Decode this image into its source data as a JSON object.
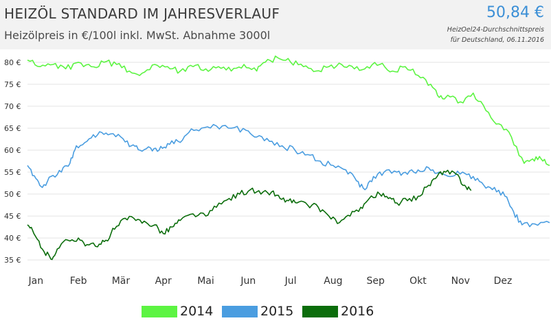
{
  "header": {
    "title": "HEIZÖL STANDARD IM JAHRESVERLAUF",
    "subtitle": "Heizölpreis in €/100l inkl. MwSt. Abnahme 3000l",
    "price": "50,84 €",
    "note_line1": "HeizOel24-Durchschnittspreis",
    "note_line2": "für Deutschland, 06.11.2016"
  },
  "chart_data": {
    "type": "line",
    "ylim": [
      33,
      82
    ],
    "yticks": [
      {
        "value": 80,
        "label": "80 €"
      },
      {
        "value": 75,
        "label": "75 €"
      },
      {
        "value": 70,
        "label": "70 €"
      },
      {
        "value": 65,
        "label": "65 €"
      },
      {
        "value": 60,
        "label": "60 €"
      },
      {
        "value": 55,
        "label": "55 €"
      },
      {
        "value": 50,
        "label": "50 €"
      },
      {
        "value": 45,
        "label": "45 €"
      },
      {
        "value": 40,
        "label": "40 €"
      },
      {
        "value": 35,
        "label": "35 €"
      }
    ],
    "xlim": [
      0,
      12.3
    ],
    "xticks": [
      {
        "value": 0.2,
        "label": "Jan"
      },
      {
        "value": 1.2,
        "label": "Feb"
      },
      {
        "value": 2.2,
        "label": "Mär"
      },
      {
        "value": 3.2,
        "label": "Apr"
      },
      {
        "value": 4.2,
        "label": "Mai"
      },
      {
        "value": 5.2,
        "label": "Jun"
      },
      {
        "value": 6.2,
        "label": "Jul"
      },
      {
        "value": 7.2,
        "label": "Aug"
      },
      {
        "value": 8.2,
        "label": "Sep"
      },
      {
        "value": 9.2,
        "label": "Okt"
      },
      {
        "value": 10.2,
        "label": "Nov"
      },
      {
        "value": 11.2,
        "label": "Dez"
      }
    ],
    "series": [
      {
        "name": "2014",
        "color": "#5cf442",
        "points": [
          [
            0,
            80.5
          ],
          [
            0.3,
            79
          ],
          [
            0.6,
            79.5
          ],
          [
            0.9,
            78.5
          ],
          [
            1.2,
            80
          ],
          [
            1.5,
            79
          ],
          [
            1.8,
            80
          ],
          [
            2.1,
            79.5
          ],
          [
            2.4,
            78
          ],
          [
            2.7,
            77.5
          ],
          [
            3.0,
            79.5
          ],
          [
            3.3,
            79
          ],
          [
            3.6,
            78
          ],
          [
            3.9,
            79
          ],
          [
            4.2,
            78.5
          ],
          [
            4.5,
            79
          ],
          [
            4.8,
            78
          ],
          [
            5.1,
            79.5
          ],
          [
            5.4,
            78
          ],
          [
            5.6,
            80
          ],
          [
            5.9,
            81
          ],
          [
            6.2,
            80
          ],
          [
            6.5,
            79
          ],
          [
            6.8,
            78
          ],
          [
            7.1,
            79
          ],
          [
            7.4,
            79.5
          ],
          [
            7.7,
            78.5
          ],
          [
            8.0,
            79
          ],
          [
            8.3,
            79.5
          ],
          [
            8.6,
            78
          ],
          [
            8.9,
            79
          ],
          [
            9.2,
            77
          ],
          [
            9.5,
            75
          ],
          [
            9.7,
            72
          ],
          [
            9.9,
            72.5
          ],
          [
            10.2,
            71
          ],
          [
            10.5,
            73
          ],
          [
            10.8,
            69
          ],
          [
            11.1,
            66
          ],
          [
            11.4,
            63
          ],
          [
            11.7,
            57
          ],
          [
            11.9,
            58
          ],
          [
            12.1,
            58
          ],
          [
            12.3,
            56.5
          ]
        ]
      },
      {
        "name": "2015",
        "color": "#4a9de0",
        "points": [
          [
            0,
            56.5
          ],
          [
            0.2,
            53.5
          ],
          [
            0.35,
            51.5
          ],
          [
            0.55,
            54
          ],
          [
            0.8,
            55
          ],
          [
            1.0,
            57
          ],
          [
            1.15,
            61
          ],
          [
            1.4,
            62
          ],
          [
            1.65,
            63.5
          ],
          [
            1.9,
            63.5
          ],
          [
            2.2,
            63
          ],
          [
            2.45,
            61
          ],
          [
            2.65,
            60
          ],
          [
            2.9,
            60.5
          ],
          [
            3.1,
            60
          ],
          [
            3.3,
            61.5
          ],
          [
            3.55,
            62
          ],
          [
            3.8,
            64
          ],
          [
            4.1,
            65
          ],
          [
            4.45,
            65.5
          ],
          [
            4.8,
            65
          ],
          [
            5.15,
            64.5
          ],
          [
            5.4,
            63
          ],
          [
            5.7,
            62
          ],
          [
            6.0,
            61
          ],
          [
            6.3,
            60
          ],
          [
            6.6,
            59
          ],
          [
            6.9,
            57.5
          ],
          [
            7.2,
            56.5
          ],
          [
            7.5,
            55.5
          ],
          [
            7.75,
            53
          ],
          [
            7.95,
            51
          ],
          [
            8.15,
            54
          ],
          [
            8.4,
            55
          ],
          [
            8.7,
            55
          ],
          [
            8.95,
            54.5
          ],
          [
            9.2,
            55.5
          ],
          [
            9.45,
            56
          ],
          [
            9.7,
            55
          ],
          [
            9.95,
            54
          ],
          [
            10.25,
            55
          ],
          [
            10.5,
            54
          ],
          [
            10.75,
            52
          ],
          [
            11.0,
            51.5
          ],
          [
            11.25,
            49.5
          ],
          [
            11.45,
            46
          ],
          [
            11.65,
            43
          ],
          [
            11.95,
            43.2
          ],
          [
            12.3,
            43.5
          ]
        ]
      },
      {
        "name": "2016",
        "color": "#0b6d0b",
        "points": [
          [
            0,
            43
          ],
          [
            0.15,
            41
          ],
          [
            0.35,
            37.5
          ],
          [
            0.55,
            35.2
          ],
          [
            0.7,
            37.5
          ],
          [
            0.95,
            39.5
          ],
          [
            1.2,
            40
          ],
          [
            1.4,
            38.5
          ],
          [
            1.65,
            38
          ],
          [
            1.85,
            39.5
          ],
          [
            2.05,
            42
          ],
          [
            2.3,
            44.5
          ],
          [
            2.55,
            44
          ],
          [
            2.8,
            43.5
          ],
          [
            3.0,
            43
          ],
          [
            3.2,
            41
          ],
          [
            3.4,
            42.5
          ],
          [
            3.6,
            44
          ],
          [
            3.9,
            45.5
          ],
          [
            4.2,
            45
          ],
          [
            4.45,
            47
          ],
          [
            4.75,
            49
          ],
          [
            5.0,
            50
          ],
          [
            5.25,
            51
          ],
          [
            5.5,
            50
          ],
          [
            5.75,
            50.5
          ],
          [
            5.95,
            49
          ],
          [
            6.15,
            48.5
          ],
          [
            6.35,
            48
          ],
          [
            6.6,
            47.5
          ],
          [
            6.85,
            47
          ],
          [
            7.1,
            45
          ],
          [
            7.35,
            43.5
          ],
          [
            7.6,
            45
          ],
          [
            7.85,
            47
          ],
          [
            8.05,
            49
          ],
          [
            8.3,
            50
          ],
          [
            8.5,
            49
          ],
          [
            8.7,
            48
          ],
          [
            8.95,
            48.5
          ],
          [
            9.2,
            49.5
          ],
          [
            9.45,
            52
          ],
          [
            9.65,
            54
          ],
          [
            9.85,
            55
          ],
          [
            10.1,
            54.5
          ],
          [
            10.3,
            52
          ],
          [
            10.45,
            50.8
          ]
        ]
      }
    ]
  }
}
